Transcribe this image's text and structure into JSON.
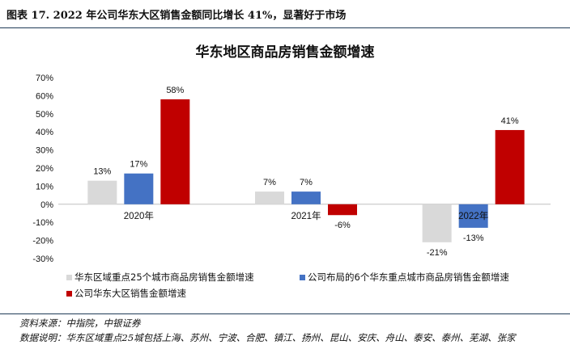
{
  "figure_caption": "图表 17. 2022 年公司华东大区销售金额同比增长 41%，显著好于市场",
  "source_text": "资料来源：中指院，中银证券",
  "note_text": "数据说明：华东区域重点25城包括上海、苏州、宁波、合肥、镇江、扬州、昆山、安庆、舟山、泰安、泰州、芜湖、张家",
  "chart_data": {
    "type": "bar",
    "title": "华东地区商品房销售金额增速",
    "categories": [
      "2020年",
      "2021年",
      "2022年"
    ],
    "ylim": [
      -30,
      70
    ],
    "ytick_step": 10,
    "ytick_labels": [
      "70%",
      "60%",
      "50%",
      "40%",
      "30%",
      "20%",
      "10%",
      "0%",
      "-10%",
      "-20%",
      "-30%"
    ],
    "grid": false,
    "legend_position": "bottom",
    "series": [
      {
        "name": "华东区域重点25个城市商品房销售金额增速",
        "color": "#d9d9d9",
        "values": [
          13,
          7,
          -21
        ],
        "labels": [
          "13%",
          "7%",
          "-21%"
        ]
      },
      {
        "name": "公司布局的6个华东重点城市商品房销售金额增速",
        "color": "#4472c4",
        "values": [
          17,
          7,
          -13
        ],
        "labels": [
          "17%",
          "7%",
          "-13%"
        ]
      },
      {
        "name": "公司华东大区销售金额增速",
        "color": "#c00000",
        "values": [
          58,
          -6,
          41
        ],
        "labels": [
          "58%",
          "-6%",
          "41%"
        ]
      }
    ]
  }
}
